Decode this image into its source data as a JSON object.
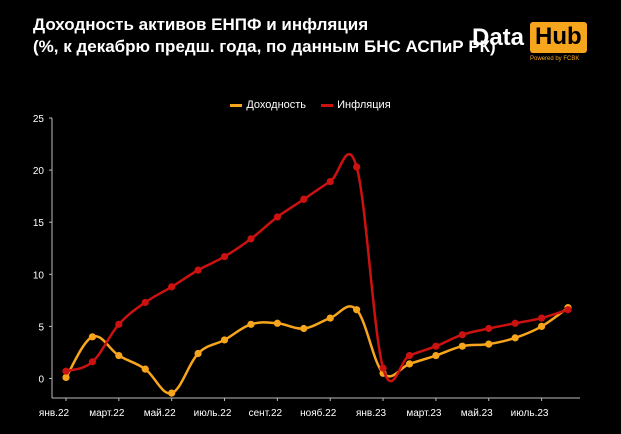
{
  "header": {
    "title_line1": "Доходность активов ЕНПФ и инфляция",
    "title_line2": "(%, к декабрю предш. года, по данным БНС АСПиР РК)"
  },
  "logo": {
    "data": "Data",
    "hub": "Hub",
    "sub": "Powered by FCBK"
  },
  "chart_data": {
    "type": "line",
    "x_ticks": [
      "янв.22",
      "март.22",
      "май.22",
      "июль.22",
      "сент.22",
      "нояб.22",
      "янв.23",
      "март.23",
      "май.23",
      "июль.23"
    ],
    "x": [
      "янв.22",
      "фев.22",
      "март.22",
      "апр.22",
      "май.22",
      "июнь.22",
      "июль.22",
      "авг.22",
      "сент.22",
      "окт.22",
      "нояб.22",
      "дек.22",
      "янв.23",
      "фев.23",
      "март.23",
      "апр.23",
      "май.23",
      "июнь.23",
      "июль.23",
      "авг.23"
    ],
    "series": [
      {
        "name": "Доходность",
        "color": "#f7a51c",
        "values": [
          0.1,
          4.0,
          2.2,
          0.9,
          -1.4,
          2.4,
          3.7,
          5.2,
          5.3,
          4.8,
          5.8,
          6.6,
          0.5,
          1.4,
          2.2,
          3.1,
          3.3,
          3.9,
          5.0,
          6.8
        ]
      },
      {
        "name": "Инфляция",
        "color": "#cc1111",
        "values": [
          0.7,
          1.6,
          5.2,
          7.3,
          8.8,
          10.4,
          11.7,
          13.4,
          15.5,
          17.2,
          18.9,
          20.3,
          1.0,
          2.2,
          3.1,
          4.2,
          4.8,
          5.3,
          5.8,
          6.6
        ]
      }
    ],
    "ylim": [
      -2,
      25
    ],
    "y_ticks": [
      0,
      5,
      10,
      15,
      20,
      25
    ],
    "legend_position": "top-center",
    "grid": false
  }
}
